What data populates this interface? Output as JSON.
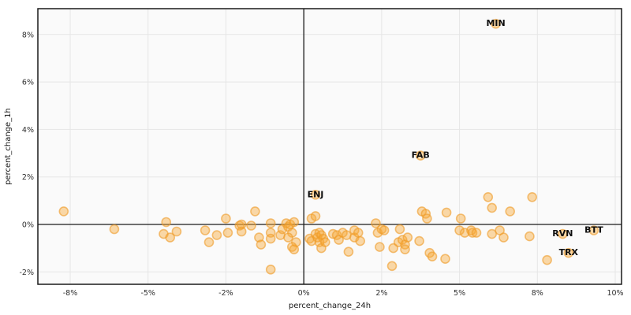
{
  "chart_data": {
    "type": "scatter",
    "title": "",
    "xlabel": "percent_change_24h",
    "ylabel": "percent_change_1h",
    "grid": true,
    "zero_lines": true,
    "x_ticks": {
      "values": [
        -8,
        -5,
        -2,
        0,
        2,
        5,
        8,
        10
      ],
      "labels": [
        "-8%",
        "-5%",
        "-2%",
        "0%",
        "2%",
        "5%",
        "8%",
        "10%"
      ]
    },
    "y_ticks": {
      "values": [
        8,
        6,
        4,
        2,
        0,
        -2
      ],
      "labels": [
        "8%",
        "6%",
        "4%",
        "2%",
        "0%",
        "-2%"
      ]
    },
    "xlim": [
      -9.3,
      10.2
    ],
    "ylim": [
      -2.55,
      9.1
    ],
    "colors": {
      "point_fill": "#F7A833",
      "point_stroke": "#EF9B28",
      "grid": "#e6e6e6",
      "plot_bg": "#fafafa",
      "zero_line": "#1a1a1a",
      "spine": "#1a1a1a"
    },
    "points": [
      [
        -8.25,
        0.55
      ],
      [
        -6.3,
        -0.2
      ],
      [
        -4.3,
        0.1
      ],
      [
        -4.4,
        -0.4
      ],
      [
        -4.15,
        -0.55
      ],
      [
        -3.9,
        -0.3
      ],
      [
        -2.8,
        -0.25
      ],
      [
        -2.65,
        -0.75
      ],
      [
        -2.35,
        -0.45
      ],
      [
        -2.0,
        0.25
      ],
      [
        -1.95,
        -0.35
      ],
      [
        -1.65,
        -0.05
      ],
      [
        -1.6,
        0.0
      ],
      [
        -1.6,
        -0.3
      ],
      [
        -1.35,
        -0.05
      ],
      [
        -1.25,
        0.55
      ],
      [
        -1.15,
        -0.55
      ],
      [
        -1.1,
        -0.85
      ],
      [
        -0.85,
        0.05
      ],
      [
        -0.85,
        -0.35
      ],
      [
        -0.85,
        -0.6
      ],
      [
        -0.85,
        -1.9
      ],
      [
        -0.6,
        -0.45
      ],
      [
        -0.55,
        -0.2
      ],
      [
        -0.45,
        0.05
      ],
      [
        -0.4,
        -0.1
      ],
      [
        -0.35,
        0.0
      ],
      [
        -0.25,
        0.1
      ],
      [
        -0.3,
        -0.35
      ],
      [
        -0.4,
        -0.55
      ],
      [
        -0.2,
        -0.75
      ],
      [
        -0.3,
        -0.95
      ],
      [
        -0.25,
        -1.05
      ],
      [
        0.2,
        0.25
      ],
      [
        0.3,
        0.35
      ],
      [
        0.3,
        1.25
      ],
      [
        0.15,
        -0.6
      ],
      [
        0.2,
        -0.7
      ],
      [
        0.3,
        -0.4
      ],
      [
        0.35,
        -0.55
      ],
      [
        0.4,
        -0.35
      ],
      [
        0.45,
        -0.45
      ],
      [
        0.5,
        -0.6
      ],
      [
        0.4,
        -0.75
      ],
      [
        0.45,
        -1.0
      ],
      [
        0.55,
        -0.75
      ],
      [
        0.75,
        -0.4
      ],
      [
        0.85,
        -0.45
      ],
      [
        0.9,
        -0.65
      ],
      [
        1.0,
        -0.35
      ],
      [
        1.1,
        -0.45
      ],
      [
        1.15,
        -1.15
      ],
      [
        1.3,
        -0.55
      ],
      [
        1.3,
        -0.25
      ],
      [
        1.4,
        -0.35
      ],
      [
        1.45,
        -0.7
      ],
      [
        1.85,
        0.05
      ],
      [
        1.9,
        -0.35
      ],
      [
        2.0,
        -0.2
      ],
      [
        2.1,
        -0.25
      ],
      [
        1.95,
        -0.95
      ],
      [
        2.45,
        -1.0
      ],
      [
        2.4,
        -1.75
      ],
      [
        2.7,
        -0.2
      ],
      [
        2.65,
        -0.75
      ],
      [
        2.8,
        -0.65
      ],
      [
        2.9,
        -0.85
      ],
      [
        3.0,
        -0.55
      ],
      [
        2.9,
        -1.05
      ],
      [
        3.45,
        -0.7
      ],
      [
        3.55,
        0.55
      ],
      [
        3.7,
        0.45
      ],
      [
        3.75,
        0.25
      ],
      [
        3.5,
        2.9
      ],
      [
        3.85,
        -1.2
      ],
      [
        3.95,
        -1.35
      ],
      [
        4.5,
        0.5
      ],
      [
        4.45,
        -1.45
      ],
      [
        5.05,
        0.25
      ],
      [
        5.0,
        -0.25
      ],
      [
        5.2,
        -0.35
      ],
      [
        5.45,
        -0.25
      ],
      [
        5.5,
        -0.35
      ],
      [
        5.65,
        -0.35
      ],
      [
        6.1,
        1.15
      ],
      [
        6.25,
        0.7
      ],
      [
        6.4,
        8.45
      ],
      [
        6.25,
        -0.4
      ],
      [
        6.55,
        -0.25
      ],
      [
        6.7,
        -0.55
      ],
      [
        6.95,
        0.55
      ],
      [
        7.7,
        -0.5
      ],
      [
        7.8,
        1.15
      ],
      [
        8.25,
        -1.5
      ],
      [
        8.65,
        -0.4
      ],
      [
        8.8,
        -1.2
      ],
      [
        9.45,
        -0.25
      ]
    ],
    "annotations": [
      {
        "label": "MIN",
        "x": 6.4,
        "y": 8.45
      },
      {
        "label": "FAB",
        "x": 3.5,
        "y": 2.9
      },
      {
        "label": "ENJ",
        "x": 0.3,
        "y": 1.25
      },
      {
        "label": "RVN",
        "x": 8.65,
        "y": -0.4
      },
      {
        "label": "BTT",
        "x": 9.45,
        "y": -0.25
      },
      {
        "label": "TRX",
        "x": 8.8,
        "y": -1.2
      }
    ]
  }
}
